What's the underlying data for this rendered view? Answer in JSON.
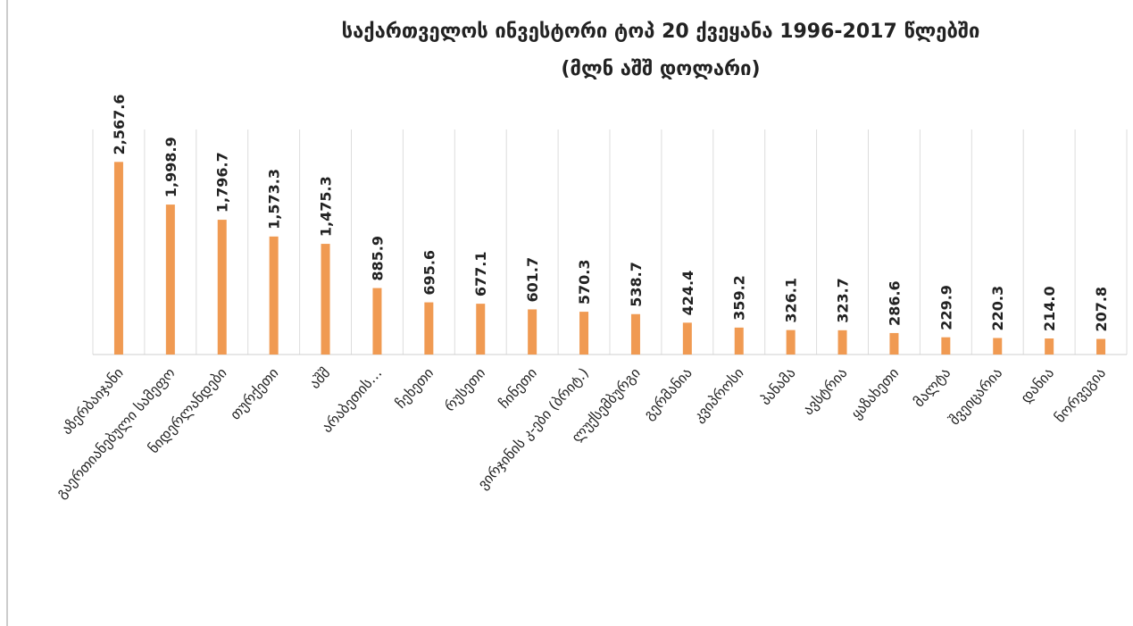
{
  "chart_data": {
    "type": "bar",
    "title": "საქართველოს ინვესტორი ტოპ 20 ქვეყანა 1996-2017 წლებში",
    "subtitle": "(მლნ აშშ დოლარი)",
    "categories": [
      "აზერბაიჯანი",
      "გაერთიანებული სამეფო",
      "ნიდერლანდები",
      "თურქეთი",
      "აშშ",
      "არაბეთის…",
      "ჩეხეთი",
      "რუსეთი",
      "ჩინეთი",
      "ვირჯინის კ-ები (ბრიტ.)",
      "ლუქსემბურგი",
      "გერმანია",
      "კვიპროსი",
      "პანამა",
      "ავსტრია",
      "ყაზახეთი",
      "მალტა",
      "შვეიცარია",
      "დანია",
      "ნორვეგია"
    ],
    "values": [
      2567.6,
      1998.9,
      1796.7,
      1573.3,
      1475.3,
      885.9,
      695.6,
      677.1,
      601.7,
      570.3,
      538.7,
      424.4,
      359.2,
      326.1,
      323.7,
      286.6,
      229.9,
      220.3,
      214.0,
      207.8
    ],
    "value_labels": [
      "2,567.6",
      "1,998.9",
      "1,796.7",
      "1,573.3",
      "1,475.3",
      "885.9",
      "695.6",
      "677.1",
      "601.7",
      "570.3",
      "538.7",
      "424.4",
      "359.2",
      "326.1",
      "323.7",
      "286.6",
      "229.9",
      "220.3",
      "214.0",
      "207.8"
    ],
    "color": "#f09a52",
    "ylim": [
      0,
      3000
    ]
  }
}
